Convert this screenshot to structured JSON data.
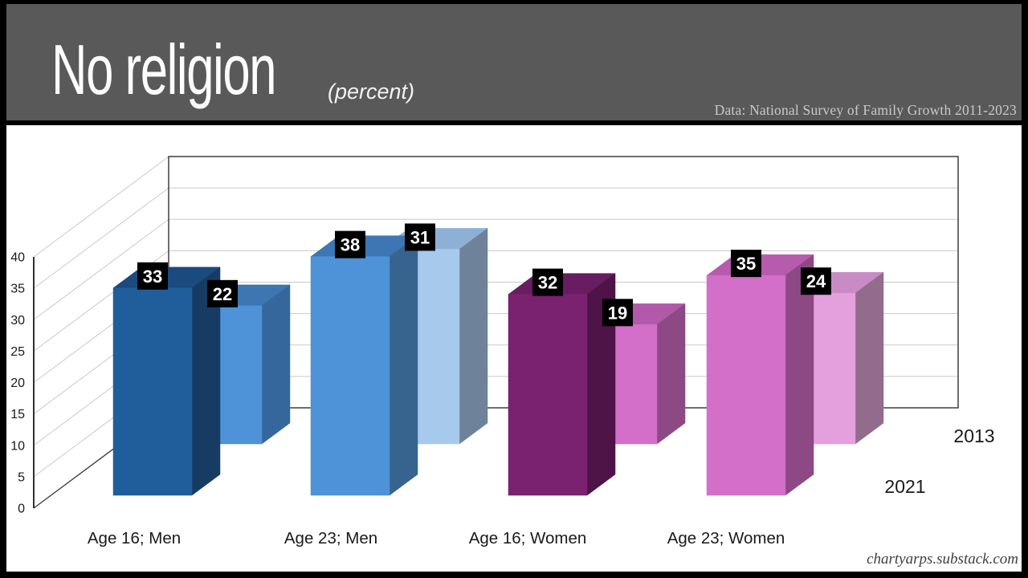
{
  "header": {
    "title": "No religion",
    "subtitle": "(percent)",
    "source": "Data: National Survey of Family Growth 2011-2023",
    "bg_color": "#595959"
  },
  "footer": {
    "credit": "chartyarps.substack.com"
  },
  "chart_data": {
    "type": "bar",
    "projection": "3d",
    "title": "No religion",
    "unit": "percent",
    "categories": [
      "Age 16; Men",
      "Age 23; Men",
      "Age 16; Women",
      "Age 23; Women"
    ],
    "series": [
      {
        "name": "2013",
        "values": [
          22,
          31,
          19,
          24
        ],
        "colors": [
          {
            "front": "#4E92D8",
            "top": "#3D76B2",
            "side": "#36679C"
          },
          {
            "front": "#A7C9EC",
            "top": "#8FB0D6",
            "side": "#6E8399"
          },
          {
            "front": "#D36FC9",
            "top": "#B25AAA",
            "side": "#8D4983"
          },
          {
            "front": "#E3A0DC",
            "top": "#C98BC3",
            "side": "#936C8D"
          }
        ]
      },
      {
        "name": "2021",
        "values": [
          33,
          38,
          32,
          35
        ],
        "colors": [
          {
            "front": "#1F5E9A",
            "top": "#1B4A7E",
            "side": "#173C64"
          },
          {
            "front": "#4E92D8",
            "top": "#3D76B2",
            "side": "#36648F"
          },
          {
            "front": "#7A2170",
            "top": "#671D60",
            "side": "#4E1347"
          },
          {
            "front": "#D36FC9",
            "top": "#B65BAE",
            "side": "#8D4983"
          }
        ]
      }
    ],
    "ylim": [
      0,
      40
    ],
    "ytick_step": 5,
    "grid": true,
    "grid_color": "#C9C9C9",
    "axis_color": "#3F3F3F",
    "tick_label_color": "#1A1A1A",
    "value_label_bg": "#000000",
    "value_label_fg": "#FFFFFF",
    "legend_position": "right-of-rows"
  }
}
